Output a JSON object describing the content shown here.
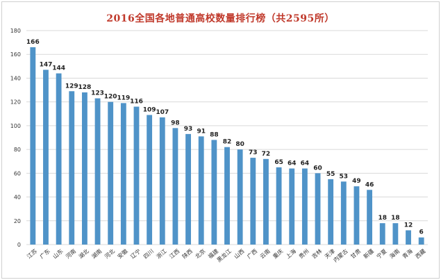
{
  "chart_data": {
    "type": "bar",
    "title": "2016全国各地普通高校数量排行榜（共2595所）",
    "xlabel": "",
    "ylabel": "",
    "ylim": [
      0,
      180
    ],
    "yticks": [
      0,
      20,
      40,
      60,
      80,
      100,
      120,
      140,
      160,
      180
    ],
    "grid": true,
    "bar_color": "#4f93c8",
    "grid_color": "#d9d9d9",
    "categories": [
      "江苏",
      "广东",
      "山东",
      "河南",
      "湖北",
      "湖南",
      "河北",
      "安徽",
      "辽宁",
      "四川",
      "浙江",
      "江西",
      "陕西",
      "北京",
      "福建",
      "黑龙江",
      "山西",
      "广西",
      "云南",
      "重庆",
      "上海",
      "贵州",
      "吉林",
      "天津",
      "内蒙古",
      "甘肃",
      "新疆",
      "宁夏",
      "海南",
      "青海",
      "西藏"
    ],
    "values": [
      166,
      147,
      144,
      129,
      128,
      123,
      120,
      119,
      116,
      109,
      107,
      98,
      93,
      91,
      88,
      82,
      80,
      73,
      72,
      65,
      64,
      64,
      60,
      55,
      53,
      49,
      46,
      18,
      18,
      12,
      6
    ]
  }
}
